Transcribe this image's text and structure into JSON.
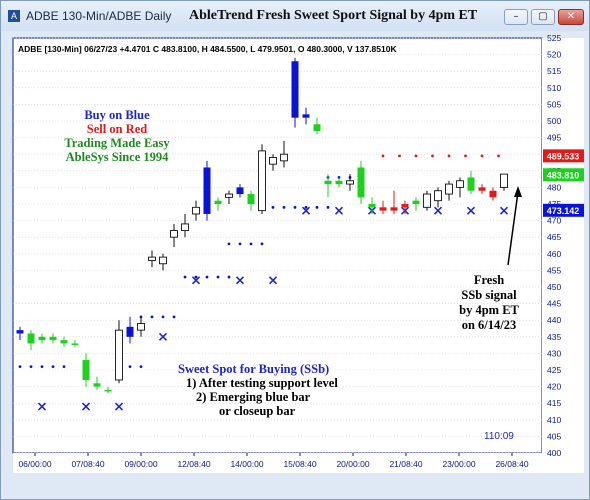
{
  "window": {
    "title": "ADBE 130-Min/ADBE Daily",
    "chart_title": "AbleTrend Fresh Sweet Sport Signal by 4pm ET",
    "buttons": {
      "minimize": "–",
      "maximize": "▢",
      "close": "✕"
    }
  },
  "header_info": "ADBE [130-Min] 06/27/23  +4.4701  C 483.8100,  H 484.5500,  L 479.9501,  O 480.3000,  V 137.8510K",
  "left_notes": {
    "buy": "Buy on Blue",
    "sell": "Sell on Red",
    "easy": "Trading Made Easy",
    "since": "AbleSys Since 1994"
  },
  "sweet_spot_notes": [
    "Sweet Spot for Buying (SSb)",
    "1) After testing support level",
    "2) Emerging blue bar",
    "or closeup bar"
  ],
  "fresh_notes": [
    "Fresh",
    "SSb signal",
    "by 4pm ET",
    "on 6/14/23"
  ],
  "time_label": "110:09",
  "colors": {
    "blue": "#0b14d6",
    "red": "#e31a1a",
    "green": "#1fd11f",
    "grid": "#cfcfcf",
    "axis": "#0a1a8c",
    "note_green": "#1e8a1e",
    "marker_x": "#1f26c8"
  },
  "chart_data": {
    "type": "candlestick",
    "title": "AbleTrend Fresh Sweet Sport Signal by 4pm ET",
    "ylim": [
      400,
      525
    ],
    "y_ticks": [
      400,
      405,
      410,
      415,
      420,
      425,
      430,
      435,
      440,
      445,
      450,
      455,
      460,
      465,
      470,
      475,
      480,
      485,
      490,
      495,
      500,
      505,
      510,
      515,
      520,
      525
    ],
    "x_ticks": [
      "06/00:00",
      "07/08:40",
      "09/00:00",
      "12/08:40",
      "14/00:00",
      "15/08:40",
      "20/00:00",
      "21/08:40",
      "23/00:00",
      "26/08:40"
    ],
    "price_tags": [
      {
        "label": "489.533",
        "value": 489.5,
        "color": "#e31a1a"
      },
      {
        "label": "483.810",
        "value": 483.8,
        "color": "#1fd11f"
      },
      {
        "label": "473.142",
        "value": 473.1,
        "color": "#0b14d6"
      }
    ],
    "candles": [
      {
        "o": 436,
        "h": 438,
        "l": 434,
        "c": 437,
        "color": "blue"
      },
      {
        "o": 436,
        "h": 437,
        "l": 431,
        "c": 433,
        "color": "green"
      },
      {
        "o": 434,
        "h": 436,
        "l": 433,
        "c": 435,
        "color": "green"
      },
      {
        "o": 435,
        "h": 436,
        "l": 433,
        "c": 434,
        "color": "green"
      },
      {
        "o": 434,
        "h": 435,
        "l": 432,
        "c": 433,
        "color": "green"
      },
      {
        "o": 433,
        "h": 434,
        "l": 432,
        "c": 433,
        "color": "green"
      },
      {
        "o": 428,
        "h": 430,
        "l": 420,
        "c": 422,
        "color": "green"
      },
      {
        "o": 421,
        "h": 423,
        "l": 419,
        "c": 420,
        "color": "green"
      },
      {
        "o": 419,
        "h": 420,
        "l": 418,
        "c": 419,
        "color": "green"
      },
      {
        "o": 422,
        "h": 440,
        "l": 421,
        "c": 437,
        "color": "blank"
      },
      {
        "o": 435,
        "h": 441,
        "l": 433,
        "c": 438,
        "color": "blue"
      },
      {
        "o": 437,
        "h": 441,
        "l": 435,
        "c": 439,
        "color": "blank"
      },
      {
        "o": 458,
        "h": 461,
        "l": 456,
        "c": 459,
        "color": "blank"
      },
      {
        "o": 457,
        "h": 460,
        "l": 455,
        "c": 459,
        "color": "blank"
      },
      {
        "o": 465,
        "h": 469,
        "l": 462,
        "c": 467,
        "color": "blank"
      },
      {
        "o": 467,
        "h": 472,
        "l": 465,
        "c": 469,
        "color": "blank"
      },
      {
        "o": 472,
        "h": 476,
        "l": 470,
        "c": 474,
        "color": "blank"
      },
      {
        "o": 486,
        "h": 488,
        "l": 470,
        "c": 472,
        "color": "blue"
      },
      {
        "o": 475,
        "h": 477,
        "l": 473,
        "c": 476,
        "color": "green"
      },
      {
        "o": 477,
        "h": 479,
        "l": 475,
        "c": 478,
        "color": "blank"
      },
      {
        "o": 480,
        "h": 481,
        "l": 477,
        "c": 478,
        "color": "blue"
      },
      {
        "o": 478,
        "h": 479,
        "l": 473,
        "c": 475,
        "color": "green"
      },
      {
        "o": 473,
        "h": 493,
        "l": 472,
        "c": 491,
        "color": "blank"
      },
      {
        "o": 487,
        "h": 490,
        "l": 485,
        "c": 489,
        "color": "blank"
      },
      {
        "o": 488,
        "h": 494,
        "l": 486,
        "c": 490,
        "color": "blank"
      },
      {
        "o": 518,
        "h": 519,
        "l": 498,
        "c": 501,
        "color": "blue"
      },
      {
        "o": 502,
        "h": 504,
        "l": 499,
        "c": 501,
        "color": "blue"
      },
      {
        "o": 499,
        "h": 501,
        "l": 496,
        "c": 497,
        "color": "green"
      },
      {
        "o": 482,
        "h": 484,
        "l": 477,
        "c": 481,
        "color": "green"
      },
      {
        "o": 482,
        "h": 483,
        "l": 480,
        "c": 481,
        "color": "green"
      },
      {
        "o": 481,
        "h": 484,
        "l": 479,
        "c": 482,
        "color": "blank"
      },
      {
        "o": 486,
        "h": 488,
        "l": 475,
        "c": 477,
        "color": "green"
      },
      {
        "o": 474,
        "h": 477,
        "l": 472,
        "c": 475,
        "color": "green"
      },
      {
        "o": 474,
        "h": 476,
        "l": 472,
        "c": 473,
        "color": "red"
      },
      {
        "o": 473,
        "h": 479,
        "l": 472,
        "c": 474,
        "color": "red"
      },
      {
        "o": 474,
        "h": 476,
        "l": 472,
        "c": 475,
        "color": "red"
      },
      {
        "o": 475,
        "h": 477,
        "l": 473,
        "c": 476,
        "color": "green"
      },
      {
        "o": 474,
        "h": 479,
        "l": 473,
        "c": 478,
        "color": "blank"
      },
      {
        "o": 476,
        "h": 480,
        "l": 474,
        "c": 479,
        "color": "blank"
      },
      {
        "o": 478,
        "h": 482,
        "l": 476,
        "c": 481,
        "color": "blank"
      },
      {
        "o": 480,
        "h": 483,
        "l": 477,
        "c": 482,
        "color": "blank"
      },
      {
        "o": 483,
        "h": 485,
        "l": 478,
        "c": 479,
        "color": "green"
      },
      {
        "o": 480,
        "h": 481,
        "l": 478,
        "c": 479,
        "color": "red"
      },
      {
        "o": 479,
        "h": 480,
        "l": 476,
        "c": 477,
        "color": "red"
      },
      {
        "o": 480,
        "h": 484,
        "l": 479,
        "c": 484,
        "color": "blank"
      }
    ],
    "support_levels": [
      {
        "x0": 0,
        "x1": 4,
        "y": 426
      },
      {
        "x0": 9,
        "x1": 11,
        "y": 426
      },
      {
        "x0": 11,
        "x1": 14,
        "y": 441
      },
      {
        "x0": 15,
        "x1": 19,
        "y": 453
      },
      {
        "x0": 19,
        "x1": 22,
        "y": 463
      },
      {
        "x0": 22,
        "x1": 28,
        "y": 474
      },
      {
        "x0": 28,
        "x1": 31,
        "y": 483
      }
    ],
    "resistance_levels": [
      {
        "x0": 33,
        "x1": 44,
        "y": 489.5
      }
    ],
    "x_markers": [
      {
        "x": 2,
        "y": 414
      },
      {
        "x": 6,
        "y": 414
      },
      {
        "x": 9,
        "y": 414
      },
      {
        "x": 13,
        "y": 435
      },
      {
        "x": 16,
        "y": 452
      },
      {
        "x": 20,
        "y": 452
      },
      {
        "x": 23,
        "y": 452
      },
      {
        "x": 26,
        "y": 473
      },
      {
        "x": 29,
        "y": 473
      },
      {
        "x": 32,
        "y": 473
      },
      {
        "x": 35,
        "y": 473
      },
      {
        "x": 38,
        "y": 473
      },
      {
        "x": 41,
        "y": 473
      },
      {
        "x": 44,
        "y": 473
      }
    ]
  }
}
